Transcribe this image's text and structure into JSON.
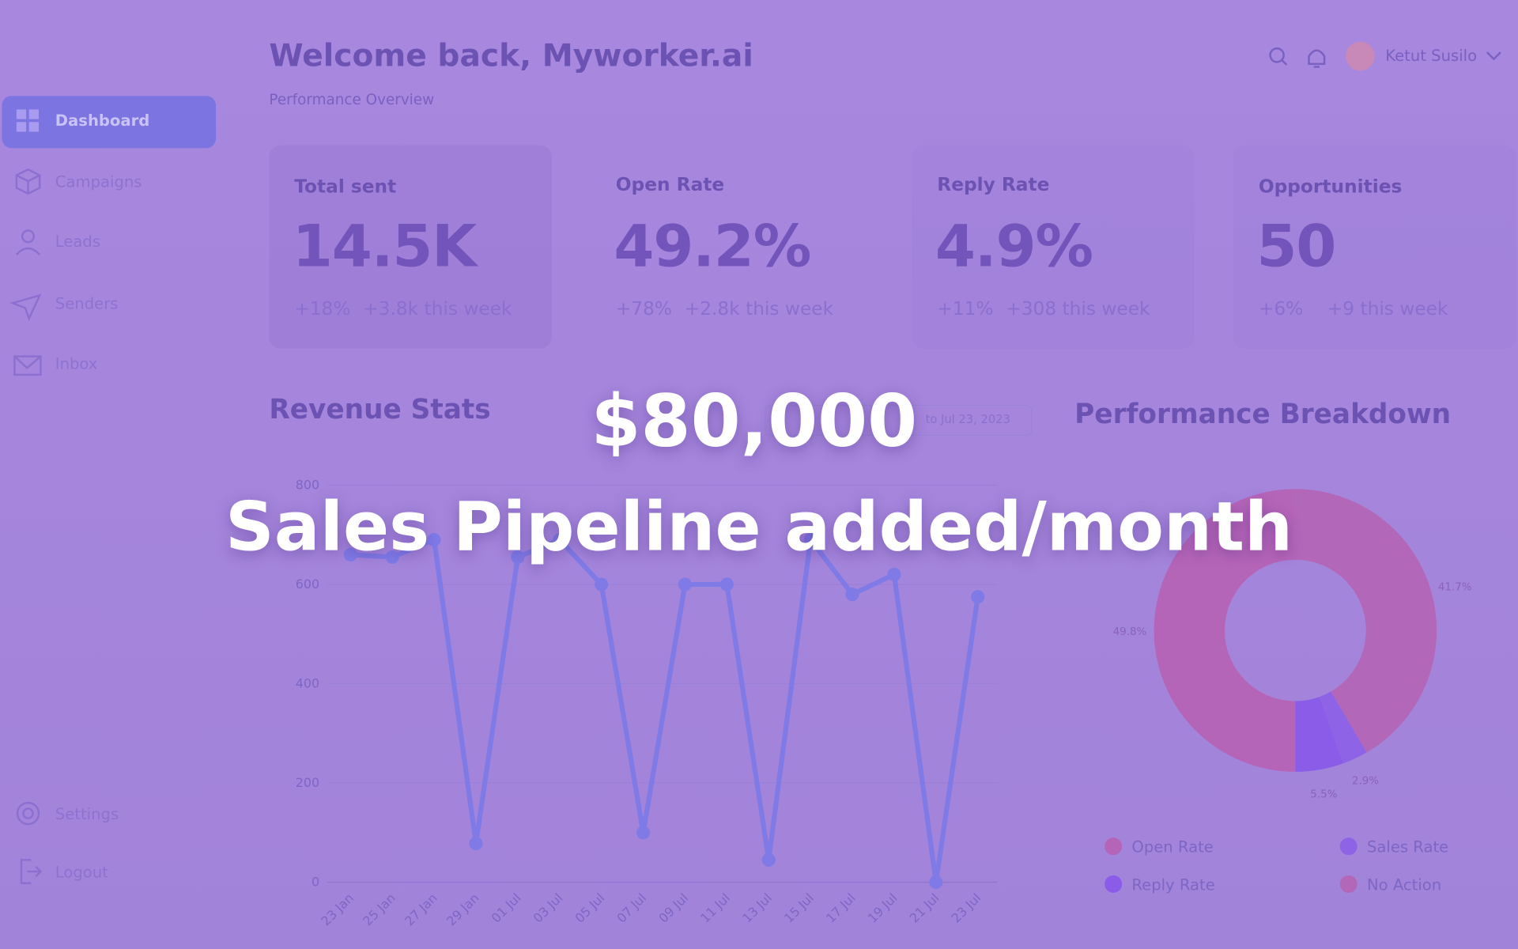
{
  "header": {
    "title": "Welcome back, Myworker.ai",
    "subtitle": "Performance Overview",
    "user": "Ketut Susilo"
  },
  "sidebar": {
    "nav": [
      "Dashboard",
      "Campaigns",
      "Leads",
      "Senders",
      "Inbox"
    ],
    "footer": [
      "Settings",
      "Logout"
    ]
  },
  "stats": [
    {
      "label": "Total sent",
      "value": "14.5K",
      "change": "+18%",
      "weekly": "+3.8k this week"
    },
    {
      "label": "Open Rate",
      "value": "49.2%",
      "change": "+78%",
      "weekly": "+2.8k this week"
    },
    {
      "label": "Reply Rate",
      "value": "4.9%",
      "change": "+11%",
      "weekly": "+308 this week"
    },
    {
      "label": "Opportunities",
      "value": "50",
      "change": "+6%",
      "weekly": "+9 this week"
    }
  ],
  "date_range": "to Jul 23, 2023",
  "chart_data": [
    {
      "type": "line",
      "title": "Revenue Stats",
      "categories": [
        "23 Jan",
        "25 Jan",
        "27 Jan",
        "29 Jan",
        "01 Jul",
        "03 Jul",
        "05 Jul",
        "07 Jul",
        "09 Jul",
        "11 Jul",
        "13 Jul",
        "15 Jul",
        "17 Jul",
        "19 Jul",
        "21 Jul",
        "23 Jul"
      ],
      "values": [
        660,
        655,
        690,
        78,
        655,
        690,
        600,
        100,
        600,
        600,
        45,
        690,
        580,
        620,
        0,
        575
      ],
      "color": "#7f7ae6",
      "ylim": [
        0,
        800
      ],
      "yticks": [
        0,
        200,
        400,
        600,
        800
      ],
      "grid": true
    },
    {
      "type": "pie",
      "title": "Performance Breakdown",
      "categories": [
        "Open Rate",
        "Sales Rate",
        "Reply Rate",
        "No Action"
      ],
      "values": [
        49.8,
        2.9,
        5.5,
        41.7
      ],
      "value_labels": [
        "49.8%",
        "2.9%",
        "5.5%",
        "41.7%"
      ],
      "colors": [
        "#b565b8",
        "#8f63e6",
        "#8a5ce8",
        "#b367b9"
      ]
    }
  ],
  "overlay": {
    "headline": "$80,000",
    "subheadline": "Sales Pipeline added/month"
  }
}
